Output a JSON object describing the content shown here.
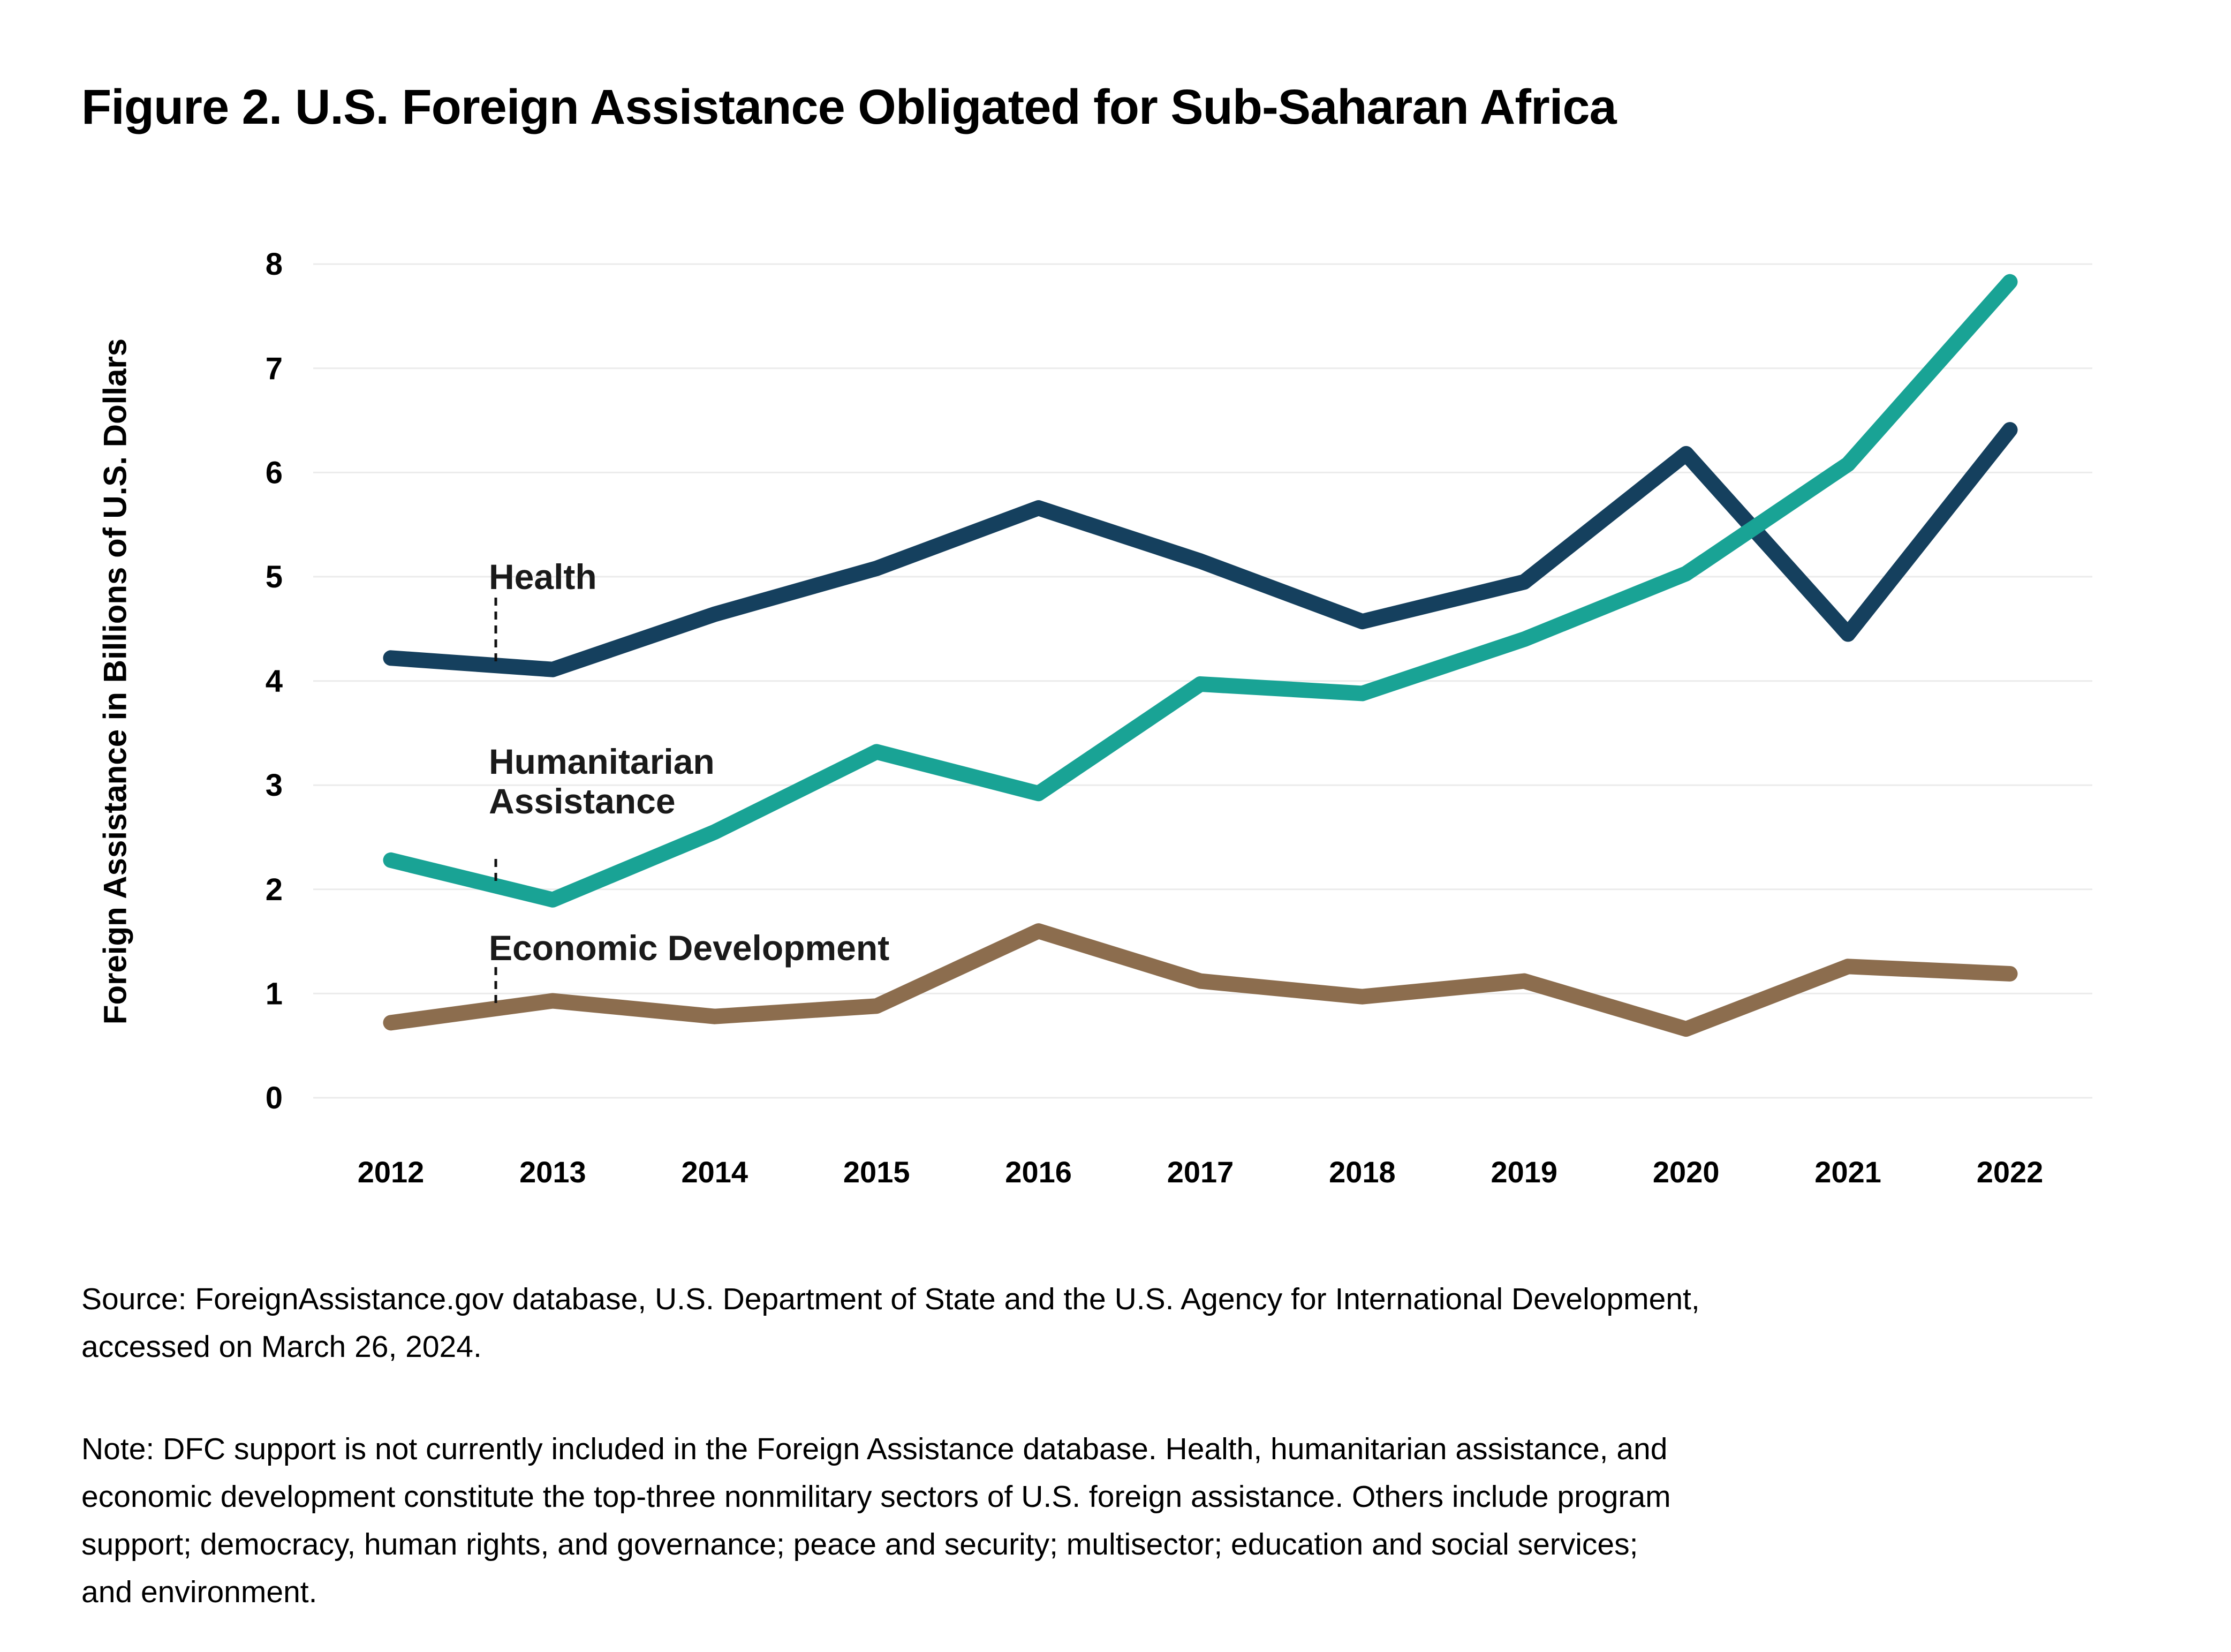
{
  "title": "Figure 2. U.S. Foreign Assistance Obligated for Sub-Saharan Africa",
  "source": {
    "lines": [
      "Source: ForeignAssistance.gov database, U.S. Department of State and the U.S. Agency for International Development,",
      "accessed on March 26, 2024."
    ]
  },
  "note": {
    "lines": [
      "Note: DFC support is not currently included in the Foreign Assistance database. Health, humanitarian assistance, and",
      "economic development constitute the top-three nonmilitary sectors of U.S. foreign assistance. Others include program",
      "support; democracy, human rights, and governance; peace and security; multisector; education and social services;",
      "and environment."
    ]
  },
  "chart_data": {
    "type": "line",
    "title": "Figure 2. U.S. Foreign Assistance Obligated for Sub-Saharan Africa",
    "xlabel": "",
    "ylabel": "Foreign Assistance in Billions of U.S. Dollars",
    "ylim": [
      0,
      8
    ],
    "grid": "horizontal-only",
    "legend_position": "inline-annotations",
    "colors": {
      "gridline": "#ebebeb",
      "text": "#000000"
    },
    "y_ticks": [
      "0",
      "1",
      "2",
      "3",
      "4",
      "5",
      "6",
      "7",
      "8"
    ],
    "categories": [
      "2012",
      "2013",
      "2014",
      "2015",
      "2016",
      "2017",
      "2018",
      "2019",
      "2020",
      "2021",
      "2022"
    ],
    "series": [
      {
        "name": "Health",
        "label_lines": [
          "Health"
        ],
        "color": "#15405e",
        "values": [
          4.22,
          4.11,
          4.64,
          5.08,
          5.66,
          5.15,
          4.57,
          4.95,
          6.18,
          4.45,
          6.41
        ]
      },
      {
        "name": "Humanitarian Assistance",
        "label_lines": [
          "Humanitarian",
          "Assistance"
        ],
        "color": "#19a395",
        "values": [
          2.28,
          1.9,
          2.55,
          3.32,
          2.92,
          3.97,
          3.88,
          4.4,
          5.03,
          6.08,
          7.83
        ]
      },
      {
        "name": "Economic Development",
        "label_lines": [
          "Economic Development"
        ],
        "color": "#8c6d4e",
        "values": [
          0.72,
          0.93,
          0.78,
          0.88,
          1.6,
          1.12,
          0.97,
          1.12,
          0.66,
          1.26,
          1.19
        ]
      }
    ]
  }
}
